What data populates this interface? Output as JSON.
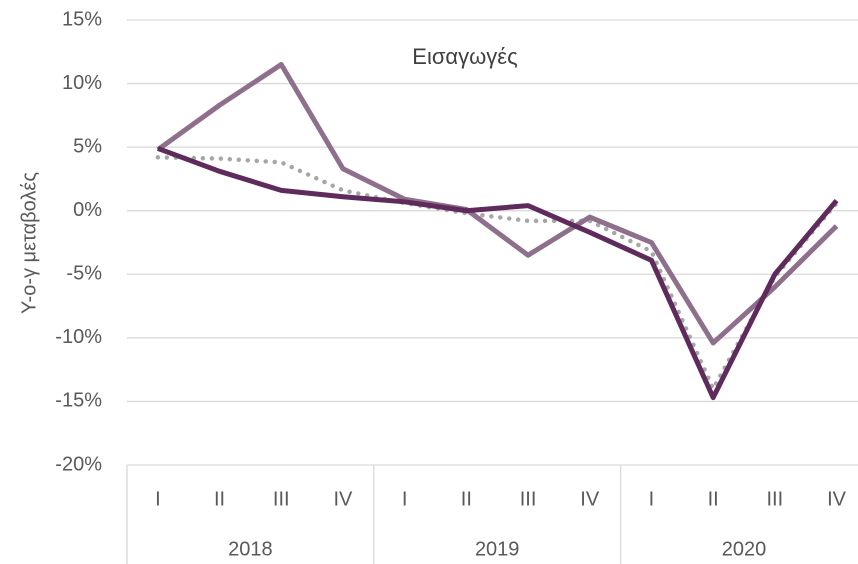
{
  "chart_data": {
    "type": "line",
    "title": "Εισαγωγές",
    "y_label": "Υ-ο-γ μεταβολές",
    "categories": [
      "I",
      "II",
      "III",
      "IV",
      "I",
      "II",
      "III",
      "IV",
      "I",
      "II",
      "III",
      "IV"
    ],
    "category_groups": [
      "2018",
      "2019",
      "2020"
    ],
    "series": [
      {
        "color": "#5e2b5c",
        "line_style": "solid",
        "values": [
          4.9,
          3.1,
          1.6,
          1.1,
          0.7,
          0.0,
          0.4,
          -1.7,
          -3.9,
          -14.7,
          -5.0,
          0.8
        ]
      },
      {
        "color": "#8e6f8c",
        "line_style": "solid",
        "values": [
          4.8,
          8.3,
          11.5,
          3.3,
          0.9,
          0.1,
          -3.5,
          -0.5,
          -2.5,
          -10.4,
          -6.0,
          -1.2
        ]
      },
      {
        "color": "#a6a6a6",
        "line_style": "dotted",
        "values": [
          4.2,
          4.1,
          3.8,
          1.6,
          0.6,
          -0.2,
          -0.8,
          -0.8,
          -3.2,
          -14.0,
          -5.2,
          0.6
        ]
      }
    ],
    "ylim": [
      -20,
      15
    ],
    "yticks": [
      {
        "value": -20,
        "label": "-20%"
      },
      {
        "value": -15,
        "label": "-15%"
      },
      {
        "value": -10,
        "label": "-10%"
      },
      {
        "value": -5,
        "label": "-5%"
      },
      {
        "value": 0,
        "label": "0%"
      },
      {
        "value": 5,
        "label": "5%"
      },
      {
        "value": 10,
        "label": "10%"
      },
      {
        "value": 15,
        "label": "15%"
      }
    ],
    "grid": true
  }
}
